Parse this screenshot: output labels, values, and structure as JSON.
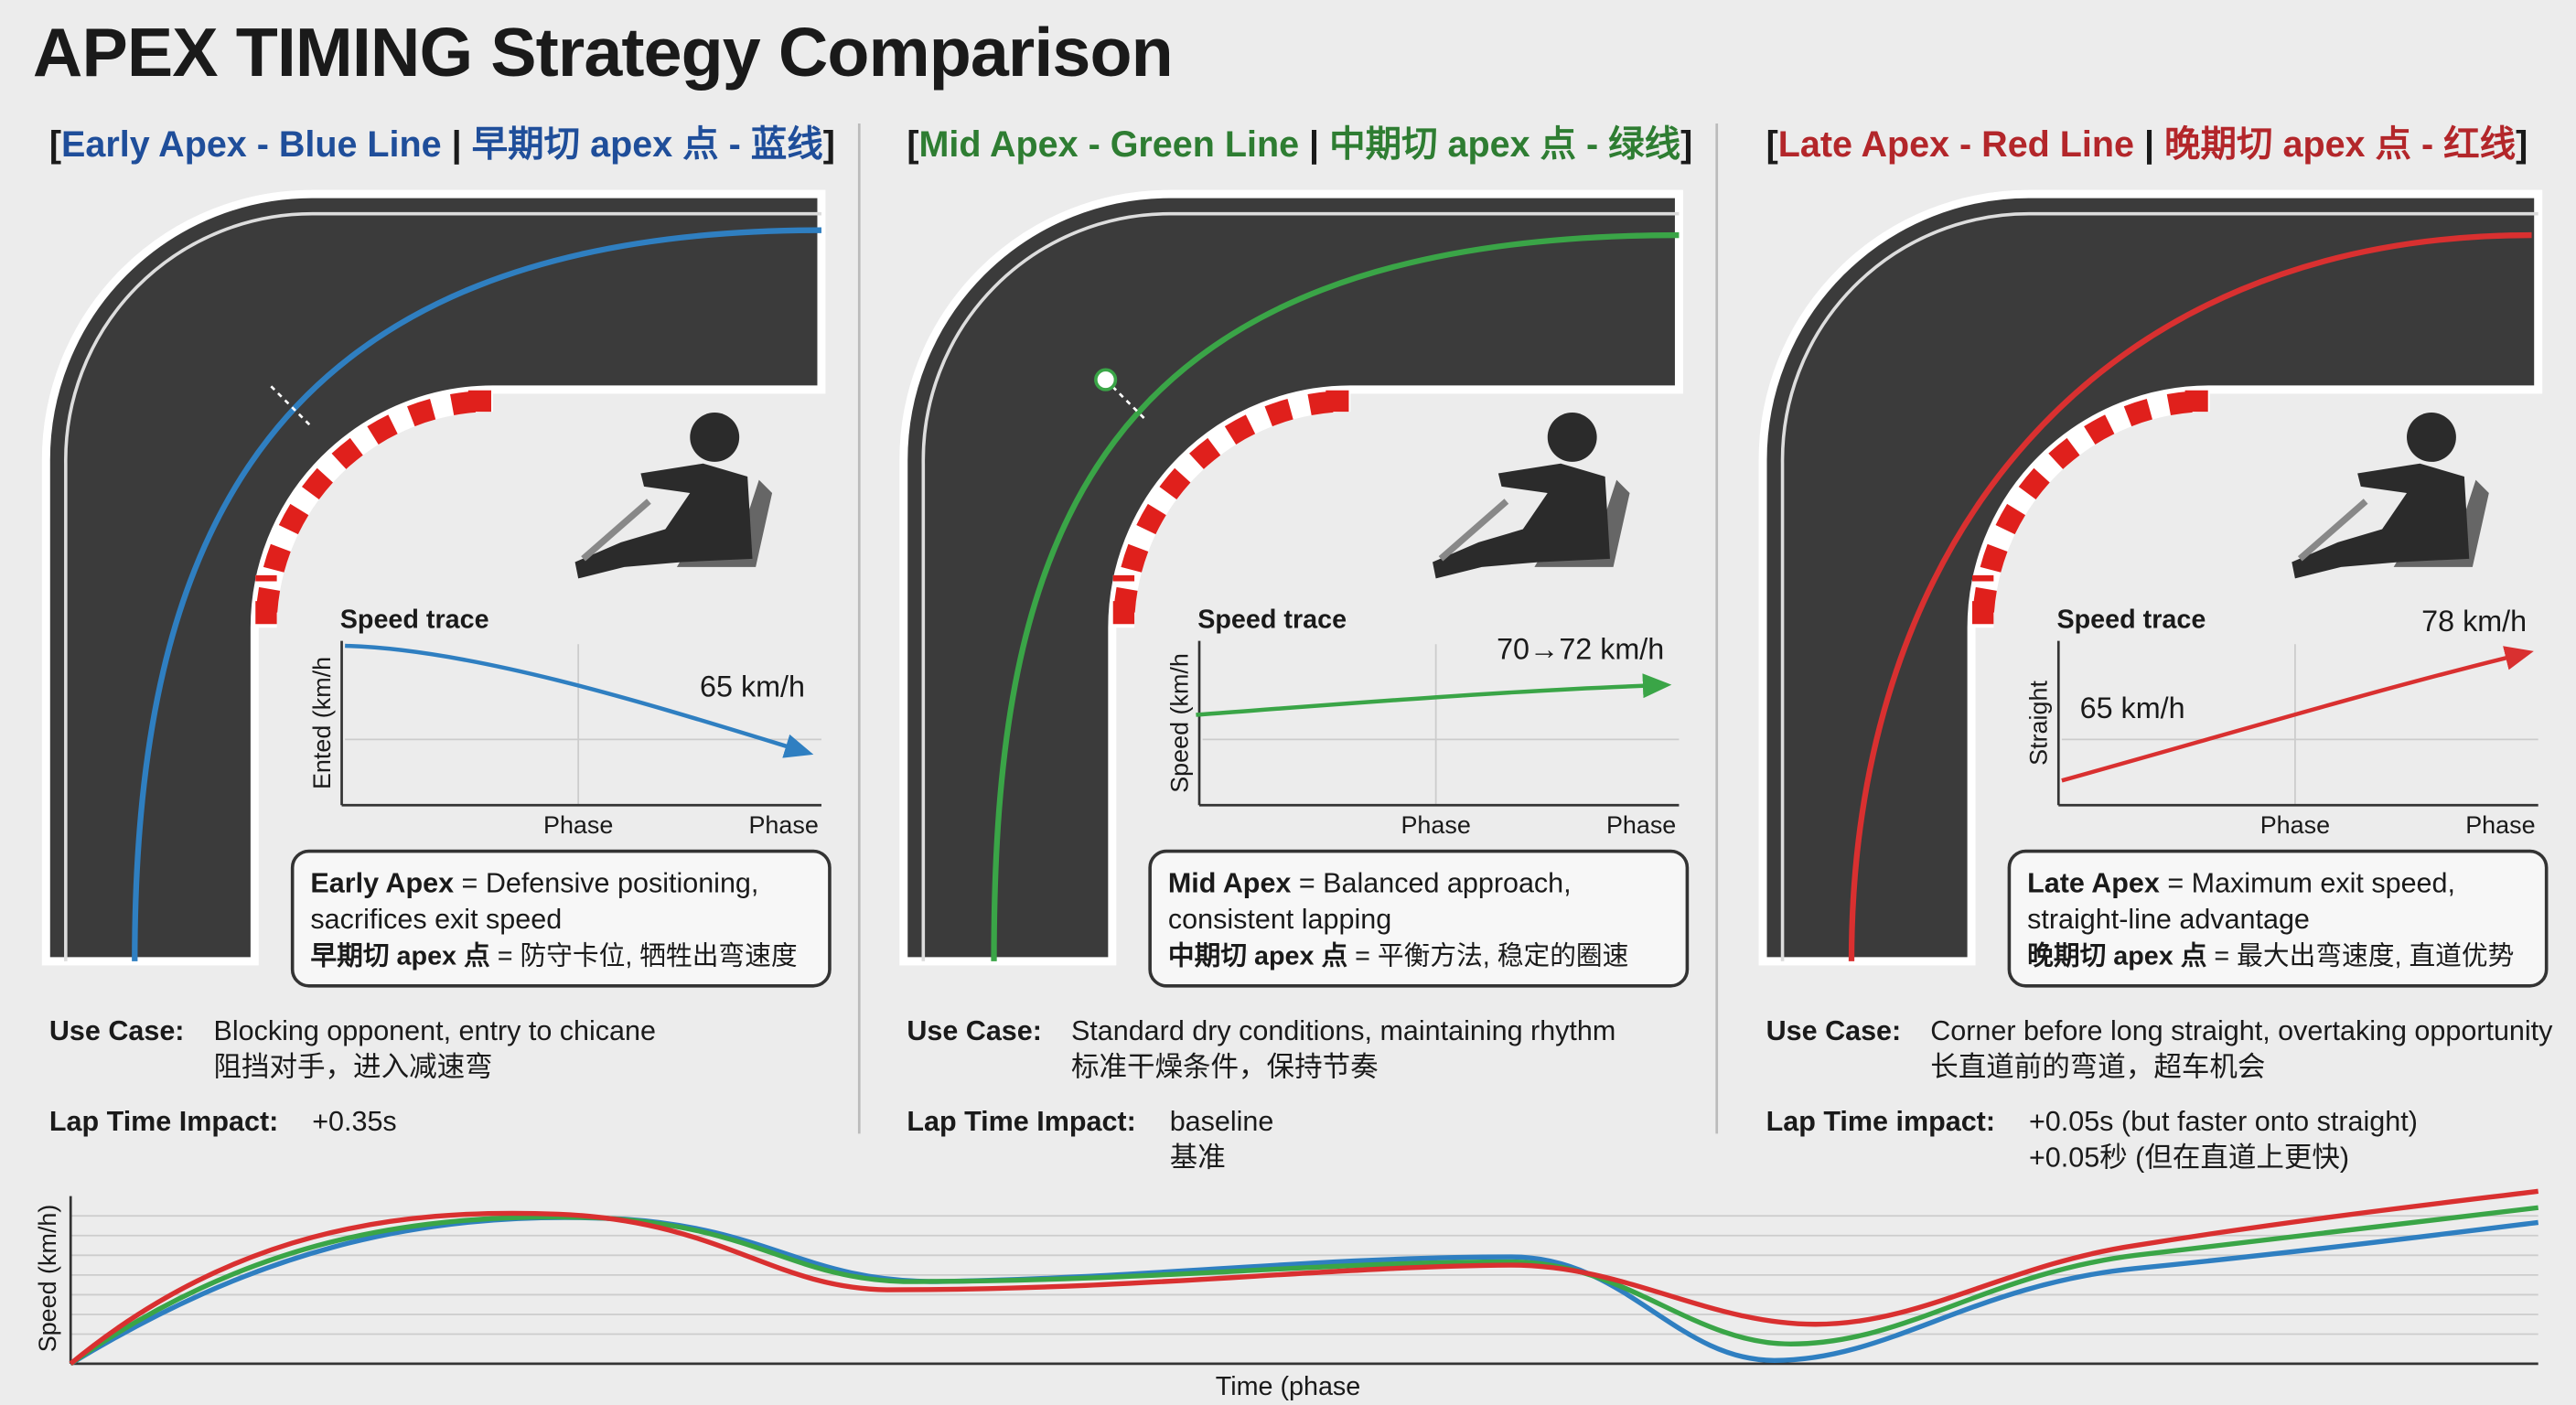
{
  "title": "APEX TIMING Strategy Comparison",
  "panels": [
    {
      "text_color": "#1f4e9a",
      "line_color": "#2f7fc1",
      "heading": [
        "[",
        "Early Apex - Blue Line",
        " | ",
        "早期切 apex 点 - 蓝线",
        "]"
      ],
      "trace": {
        "title": "Speed trace",
        "y_label": "Ented (km/h",
        "x_labels": [
          "Phase",
          "Phase"
        ],
        "value_labels": [
          "65 km/h"
        ]
      },
      "box": {
        "term": "Early Apex",
        "line1": " = Defensive positioning,",
        "line2": "sacrifices exit speed",
        "term_zh": "早期切 apex 点",
        "line3": " = 防守卡位, 牺牲出弯速度"
      },
      "use_case": {
        "label": "Use Case:",
        "lines": [
          "Blocking opponent, entry to chicane",
          "阻挡对手，进入减速弯"
        ]
      },
      "lap_time": {
        "label": "Lap Time Impact:",
        "lines": [
          "+0.35s"
        ]
      }
    },
    {
      "text_color": "#2e7d32",
      "line_color": "#3aa547",
      "heading": [
        "[",
        "Mid Apex - Green Line",
        " | ",
        "中期切 apex 点 - 绿线",
        "]"
      ],
      "trace": {
        "title": "Speed trace",
        "y_label": "Speed (km/h",
        "x_labels": [
          "Phase",
          "Phase"
        ],
        "value_labels": [
          "70→72 km/h"
        ]
      },
      "box": {
        "term": "Mid Apex",
        "line1": " = Balanced approach,",
        "line2": "consistent lapping",
        "term_zh": "中期切 apex 点",
        "line3": " = 平衡方法, 稳定的圈速"
      },
      "use_case": {
        "label": "Use Case:",
        "lines": [
          "Standard dry conditions, maintaining rhythm",
          "标准干燥条件，保持节奏"
        ]
      },
      "lap_time": {
        "label": "Lap Time Impact:",
        "lines": [
          "baseline",
          "基准"
        ]
      }
    },
    {
      "text_color": "#b3262a",
      "line_color": "#d93030",
      "heading": [
        "[",
        "Late Apex - Red Line",
        " | ",
        "晚期切 apex 点 - 红线",
        "]"
      ],
      "trace": {
        "title": "Speed trace",
        "y_label": "Straight",
        "x_labels": [
          "Phase",
          "Phase"
        ],
        "value_labels": [
          "65 km/h",
          "78 km/h"
        ]
      },
      "box": {
        "term": "Late Apex",
        "line1": " = Maximum exit speed,",
        "line2": "straight-line advantage",
        "term_zh": "晚期切 apex 点",
        "line3": " = 最大出弯速度, 直道优势"
      },
      "use_case": {
        "label": "Use Case:",
        "lines": [
          "Corner before long straight, overtaking opportunity",
          "长直道前的弯道，超车机会"
        ]
      },
      "lap_time": {
        "label": "Lap Time impact:",
        "lines": [
          "+0.05s (but faster onto straight)",
          "+0.05秒 (但在直道上更快)"
        ]
      }
    }
  ],
  "bottom_chart": {
    "y_label": "Speed (km/h)",
    "x_label": "Time (phase"
  }
}
